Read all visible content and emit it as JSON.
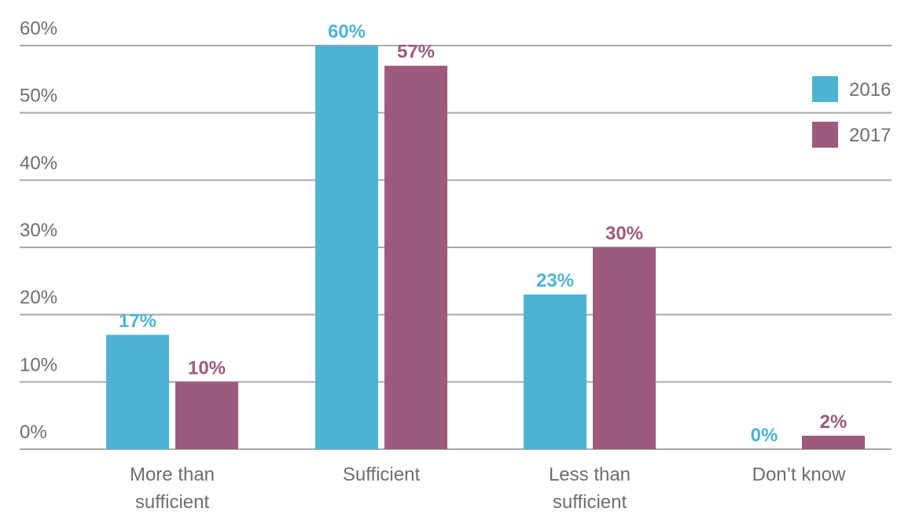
{
  "chart_data": {
    "type": "bar",
    "categories": [
      [
        "More than",
        "sufficient"
      ],
      [
        "Sufficient"
      ],
      [
        "Less than",
        "sufficient"
      ],
      [
        "Don’t know"
      ]
    ],
    "series": [
      {
        "name": "2016",
        "color": "#4eb3d3",
        "values": [
          17,
          60,
          23,
          0
        ],
        "labels": [
          "17%",
          "60%",
          "23%",
          "0%"
        ]
      },
      {
        "name": "2017",
        "color": "#9c5a7c",
        "values": [
          10,
          57,
          30,
          2
        ],
        "labels": [
          "10%",
          "57%",
          "30%",
          "2%"
        ]
      }
    ],
    "y_ticks": [
      {
        "value": 0,
        "label": "0%"
      },
      {
        "value": 10,
        "label": "10%"
      },
      {
        "value": 20,
        "label": "20%"
      },
      {
        "value": 30,
        "label": "30%"
      },
      {
        "value": 40,
        "label": "40%"
      },
      {
        "value": 50,
        "label": "50%"
      },
      {
        "value": 60,
        "label": "60%"
      }
    ],
    "ylim": [
      0,
      60
    ],
    "grid": true,
    "legend_position": "top-right"
  }
}
